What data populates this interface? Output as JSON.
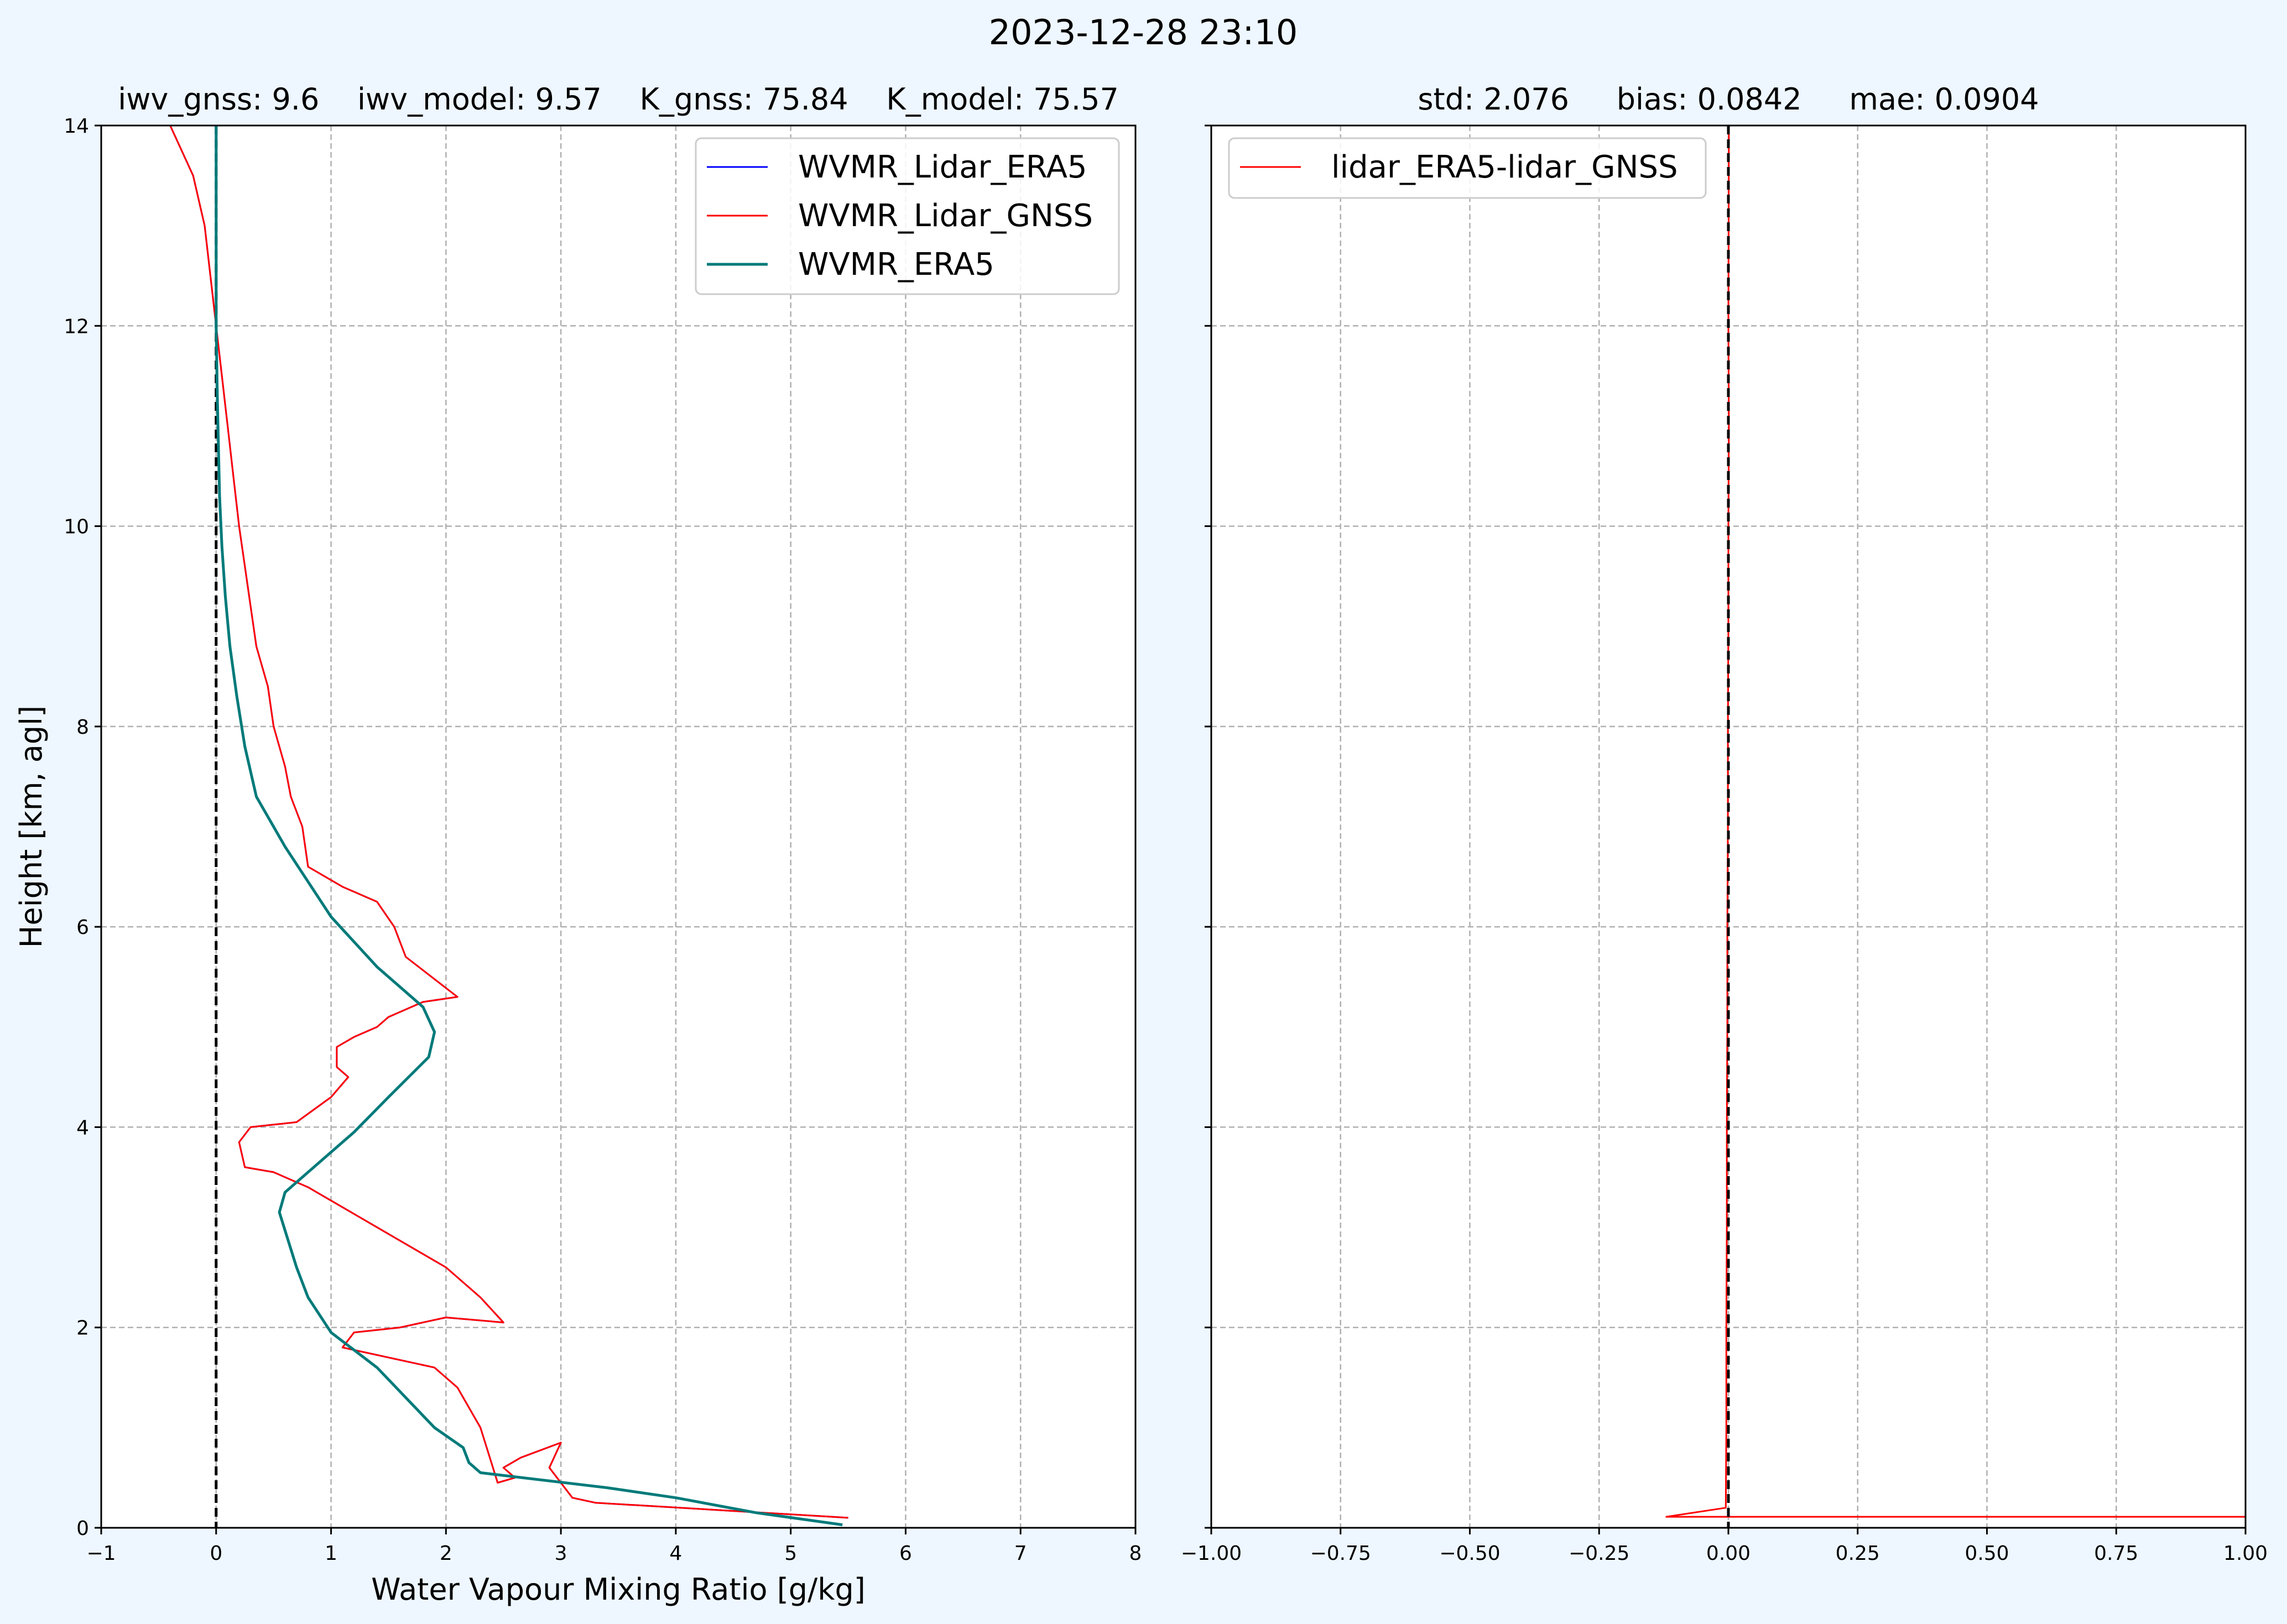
{
  "figure": {
    "suptitle": "2023-12-28 23:10",
    "background": "#eef7ff"
  },
  "chart_data": [
    {
      "type": "line",
      "title": "iwv_gnss: 9.6    iwv_model: 9.57    K_gnss: 75.84    K_model: 75.57",
      "xlabel": "Water Vapour Mixing Ratio [g/kg]",
      "ylabel": "Height [km, agl]",
      "xlim": [
        -1,
        8
      ],
      "ylim": [
        0,
        14
      ],
      "xticks": [
        -1,
        0,
        1,
        2,
        3,
        4,
        5,
        6,
        7,
        8
      ],
      "xtick_labels": [
        "−1",
        "0",
        "1",
        "2",
        "3",
        "4",
        "5",
        "6",
        "7",
        "8"
      ],
      "yticks": [
        0,
        2,
        4,
        6,
        8,
        10,
        12,
        14
      ],
      "ytick_labels": [
        "0",
        "2",
        "4",
        "6",
        "8",
        "10",
        "12",
        "14"
      ],
      "grid": true,
      "legend_loc": "upper right",
      "reference_line": {
        "x": 0,
        "style": "dashed",
        "color": "#000000"
      },
      "series": [
        {
          "name": "WVMR_Lidar_ERA5",
          "color": "#0000ff",
          "x": [
            5.5,
            3.3,
            3.1,
            2.9,
            3.0,
            2.65,
            2.5,
            2.6,
            2.45,
            2.3,
            2.2,
            2.1,
            1.9,
            1.1,
            1.2,
            1.6,
            2.0,
            2.5,
            2.3,
            2.0,
            1.7,
            1.55,
            1.4,
            1.1,
            0.8,
            0.5,
            0.25,
            0.2,
            0.3,
            0.7,
            1.0,
            1.15,
            1.05,
            1.05,
            1.2,
            1.4,
            1.5,
            1.8,
            2.1,
            1.65,
            1.55,
            1.4,
            1.1,
            0.8,
            0.75,
            0.65,
            0.6,
            0.5,
            0.45,
            0.35,
            0.3,
            0.25,
            0.2,
            0.15,
            0.1,
            0.05,
            0.0,
            -0.05,
            -0.1,
            -0.2,
            -0.4
          ],
          "y": [
            0.1,
            0.25,
            0.3,
            0.6,
            0.85,
            0.7,
            0.6,
            0.5,
            0.45,
            1.0,
            1.2,
            1.4,
            1.6,
            1.8,
            1.95,
            2.0,
            2.1,
            2.05,
            2.3,
            2.6,
            2.8,
            2.9,
            3.0,
            3.2,
            3.4,
            3.55,
            3.6,
            3.85,
            4.0,
            4.05,
            4.3,
            4.5,
            4.6,
            4.8,
            4.9,
            5.0,
            5.1,
            5.25,
            5.3,
            5.7,
            6.0,
            6.25,
            6.4,
            6.6,
            7.0,
            7.3,
            7.6,
            8.0,
            8.4,
            8.8,
            9.2,
            9.6,
            10.0,
            10.5,
            11.0,
            11.5,
            12.0,
            12.5,
            13.0,
            13.5,
            14.0
          ]
        },
        {
          "name": "WVMR_Lidar_GNSS",
          "color": "#ff0000",
          "x": [
            5.5,
            3.3,
            3.1,
            2.9,
            3.0,
            2.65,
            2.5,
            2.6,
            2.45,
            2.3,
            2.2,
            2.1,
            1.9,
            1.1,
            1.2,
            1.6,
            2.0,
            2.5,
            2.3,
            2.0,
            1.7,
            1.55,
            1.4,
            1.1,
            0.8,
            0.5,
            0.25,
            0.2,
            0.3,
            0.7,
            1.0,
            1.15,
            1.05,
            1.05,
            1.2,
            1.4,
            1.5,
            1.8,
            2.1,
            1.65,
            1.55,
            1.4,
            1.1,
            0.8,
            0.75,
            0.65,
            0.6,
            0.5,
            0.45,
            0.35,
            0.3,
            0.25,
            0.2,
            0.15,
            0.1,
            0.05,
            0.0,
            -0.05,
            -0.1,
            -0.2,
            -0.4
          ],
          "y": [
            0.1,
            0.25,
            0.3,
            0.6,
            0.85,
            0.7,
            0.6,
            0.5,
            0.45,
            1.0,
            1.2,
            1.4,
            1.6,
            1.8,
            1.95,
            2.0,
            2.1,
            2.05,
            2.3,
            2.6,
            2.8,
            2.9,
            3.0,
            3.2,
            3.4,
            3.55,
            3.6,
            3.85,
            4.0,
            4.05,
            4.3,
            4.5,
            4.6,
            4.8,
            4.9,
            5.0,
            5.1,
            5.25,
            5.3,
            5.7,
            6.0,
            6.25,
            6.4,
            6.6,
            7.0,
            7.3,
            7.6,
            8.0,
            8.4,
            8.8,
            9.2,
            9.6,
            10.0,
            10.5,
            11.0,
            11.5,
            12.0,
            12.5,
            13.0,
            13.5,
            14.0
          ]
        },
        {
          "name": "WVMR_ERA5",
          "color": "#007a7a",
          "x": [
            5.45,
            4.7,
            4.0,
            3.4,
            2.3,
            2.2,
            2.15,
            1.9,
            1.4,
            1.0,
            0.8,
            0.7,
            0.55,
            0.6,
            0.9,
            1.2,
            1.5,
            1.85,
            1.9,
            1.8,
            1.4,
            1.0,
            0.6,
            0.35,
            0.25,
            0.18,
            0.12,
            0.08,
            0.05,
            0.03,
            0.02,
            0.01,
            0.0,
            0.0,
            0.0
          ],
          "y": [
            0.03,
            0.15,
            0.3,
            0.4,
            0.55,
            0.65,
            0.8,
            1.0,
            1.6,
            1.95,
            2.3,
            2.6,
            3.15,
            3.35,
            3.65,
            3.95,
            4.3,
            4.7,
            4.95,
            5.2,
            5.6,
            6.1,
            6.8,
            7.3,
            7.8,
            8.3,
            8.8,
            9.3,
            9.8,
            10.3,
            10.8,
            11.3,
            12.0,
            13.0,
            14.0
          ]
        }
      ]
    },
    {
      "type": "line",
      "title": "std: 2.076     bias: 0.0842     mae: 0.0904",
      "xlabel": "",
      "ylabel": "",
      "xlim": [
        -1.0,
        1.0
      ],
      "ylim": [
        0,
        14
      ],
      "xticks": [
        -1.0,
        -0.75,
        -0.5,
        -0.25,
        0.0,
        0.25,
        0.5,
        0.75,
        1.0
      ],
      "xtick_labels": [
        "−1.00",
        "−0.75",
        "−0.50",
        "−0.25",
        "0.00",
        "0.25",
        "0.50",
        "0.75",
        "1.00"
      ],
      "yticks": [
        0,
        2,
        4,
        6,
        8,
        10,
        12,
        14
      ],
      "grid": true,
      "legend_loc": "upper left",
      "reference_line": {
        "x": 0,
        "style": "dashed",
        "color": "#000000"
      },
      "series": [
        {
          "name": "lidar_ERA5-lidar_GNSS",
          "color": "#ff0000",
          "x": [
            1.0,
            -0.12,
            -0.005,
            -0.004,
            -0.004,
            -0.003,
            -0.003,
            -0.002,
            -0.002,
            -0.001,
            -0.001,
            0.0,
            0.0,
            0.001,
            0.0,
            0.001
          ],
          "y": [
            0.11,
            0.11,
            0.2,
            1.0,
            2.0,
            3.0,
            4.0,
            5.0,
            6.0,
            7.0,
            8.0,
            9.0,
            10.0,
            11.0,
            12.0,
            14.0
          ]
        }
      ]
    }
  ]
}
